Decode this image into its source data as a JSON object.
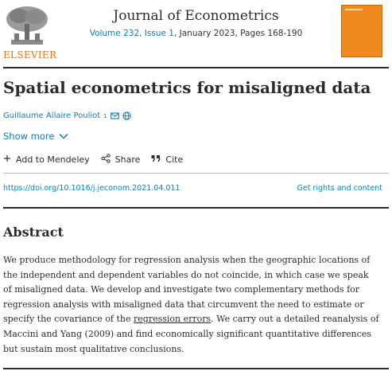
{
  "header": {
    "journal_title": "Journal of Econometrics",
    "volume_issue": "Volume 232, Issue 1",
    "date_pages": ", January 2023, Pages 168-190",
    "publisher": "ELSEVIER"
  },
  "article": {
    "title": "Spatial econometrics for misaligned data",
    "author": "Guillaume Allaire Pouliot",
    "author_sup": "1",
    "show_more_label": "Show more",
    "actions": {
      "mendeley": "Add to Mendeley",
      "share": "Share",
      "cite": "Cite"
    },
    "doi": "https://doi.org/10.1016/j.jeconom.2021.04.011",
    "rights": "Get rights and content"
  },
  "abstract": {
    "heading": "Abstract",
    "line1": "We produce methodology for regression analysis when the geographic locations of",
    "line2": "the independent and dependent variables do not coincide, in which case we speak",
    "line3": "of misaligned data. We develop and investigate two complementary methods for",
    "line4": "regression analysis with misaligned data that circumvent the need to estimate or",
    "line5_pre": "specify the covariance of the ",
    "line5_link": "regression errors",
    "line5_post": ". We carry out a detailed reanalysis of",
    "line6": "Maccini and Yang (2009) and find economically significant quantitative differences",
    "line7": "but sustain most qualitative conclusions."
  },
  "icons": {
    "email": "email-icon",
    "orcid": "globe-icon",
    "chevron": "chevron-down-icon",
    "plus": "plus-icon",
    "share": "share-icon",
    "cite": "quote-icon"
  },
  "colors": {
    "link": "#0c7dbb",
    "publisher_orange": "#e9711c",
    "cover": "#f08a1c"
  }
}
